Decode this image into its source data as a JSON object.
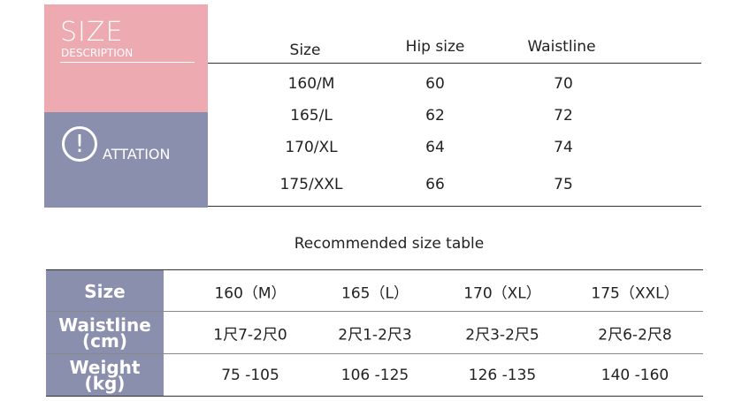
{
  "header": {
    "title": "SIZE",
    "subtitle": "DESCRIPTION",
    "notice_icon": "!",
    "notice": "ATTATION"
  },
  "size_table": {
    "columns": [
      "Size",
      "Hip size",
      "Waistline"
    ],
    "rows": [
      [
        "160/M",
        "60",
        "70"
      ],
      [
        "165/L",
        "62",
        "72"
      ],
      [
        "170/XL",
        "64",
        "74"
      ],
      [
        "175/XXL",
        "66",
        "75"
      ]
    ]
  },
  "recommended": {
    "title": "Recommended size table",
    "rows": [
      {
        "label": [
          "Size"
        ],
        "cells": [
          "160（M）",
          "165（L）",
          "170（XL）",
          "175（XXL）"
        ]
      },
      {
        "label": [
          "Waistline",
          "(cm)"
        ],
        "cells": [
          "1尺7-2尺0",
          "2尺1-2尺3",
          "2尺3-2尺5",
          "2尺6-2尺8"
        ]
      },
      {
        "label": [
          "Weight",
          "(kg)"
        ],
        "cells": [
          "75 -105",
          "106 -125",
          "126 -135",
          "140 -160"
        ]
      }
    ]
  }
}
